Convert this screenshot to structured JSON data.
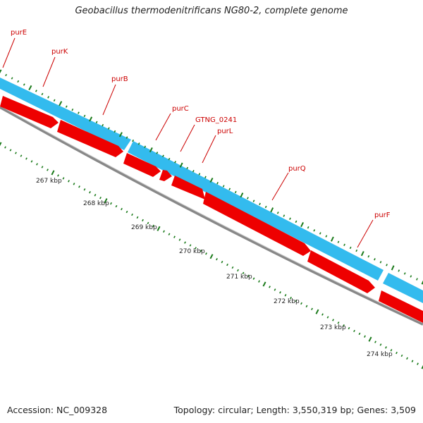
{
  "title": "Geobacillus thermodenitrificans NG80-2, complete genome",
  "footer": {
    "accession": "Accession: NC_009328",
    "topology": "Topology: circular; Length: 3,550,319 bp; Genes: 3,509"
  },
  "colors": {
    "forward_strand": "#33bbee",
    "reverse_strand": "#ee0000",
    "backbone": "#888888",
    "ticks": "#1a7a1a",
    "gene_label": "#cc0000",
    "leader_line": "#cc0000"
  },
  "genes": [
    {
      "name": "purE"
    },
    {
      "name": "purK"
    },
    {
      "name": "purB"
    },
    {
      "name": "purC"
    },
    {
      "name": "GTNG_0241"
    },
    {
      "name": "purL"
    },
    {
      "name": "purQ"
    },
    {
      "name": "purF"
    }
  ],
  "scale_labels": [
    "267 kbp",
    "268 kbp",
    "269 kbp",
    "270 kbp",
    "271 kbp",
    "272 kbp",
    "273 kbp",
    "274 kbp"
  ]
}
